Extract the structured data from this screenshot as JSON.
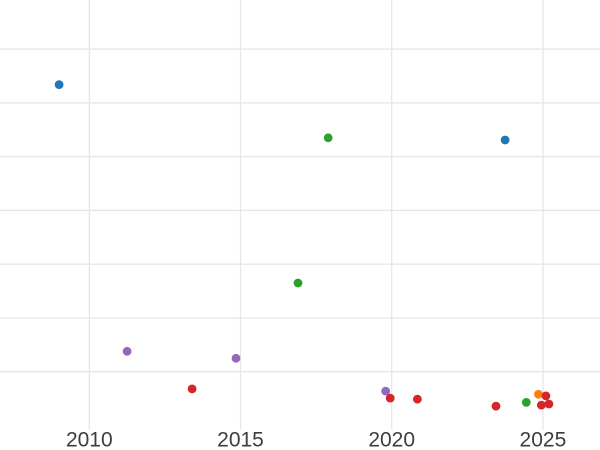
{
  "page": {
    "background_color": "#ffffff"
  },
  "chart_data": {
    "type": "scatter",
    "title": "",
    "xlabel": "",
    "ylabel": "",
    "grid": true,
    "legend": "none",
    "gridline_color": "#e6e6e6",
    "axis_text_color": "#3d3d3d",
    "marker": {
      "shape": "circle",
      "radius_px": 4.4
    },
    "x_ticks": [
      2010,
      2015,
      2020,
      2025
    ],
    "x_tick_labels": [
      "2010",
      "2015",
      "2020",
      "2025"
    ],
    "xlim_visible": [
      2007.05,
      2026.9
    ],
    "y_axis_note": "y tick labels not visible (cropped); y values given in gridline units above plot bottom",
    "y_gridlines": [
      1,
      2,
      3,
      4,
      5,
      6,
      7
    ],
    "ylim_visible": [
      0,
      7.9
    ],
    "series": [
      {
        "name": "blue",
        "color": "#1f77b4",
        "points": [
          {
            "x": 2009.0,
            "y": 6.34
          },
          {
            "x": 2023.75,
            "y": 5.31
          }
        ]
      },
      {
        "name": "green",
        "color": "#2ca02c",
        "points": [
          {
            "x": 2016.9,
            "y": 2.65
          },
          {
            "x": 2017.9,
            "y": 5.35
          },
          {
            "x": 2024.45,
            "y": 0.43
          }
        ]
      },
      {
        "name": "purple",
        "color": "#9467bd",
        "points": [
          {
            "x": 2011.25,
            "y": 1.38
          },
          {
            "x": 2014.85,
            "y": 1.25
          },
          {
            "x": 2019.8,
            "y": 0.64
          }
        ]
      },
      {
        "name": "orange",
        "color": "#ff7f0e",
        "points": [
          {
            "x": 2024.85,
            "y": 0.58
          }
        ]
      },
      {
        "name": "red",
        "color": "#d62728",
        "points": [
          {
            "x": 2013.4,
            "y": 0.68
          },
          {
            "x": 2019.95,
            "y": 0.51
          },
          {
            "x": 2020.85,
            "y": 0.49
          },
          {
            "x": 2023.45,
            "y": 0.36
          },
          {
            "x": 2024.95,
            "y": 0.38
          },
          {
            "x": 2025.2,
            "y": 0.4
          },
          {
            "x": 2025.1,
            "y": 0.55
          }
        ]
      }
    ]
  }
}
